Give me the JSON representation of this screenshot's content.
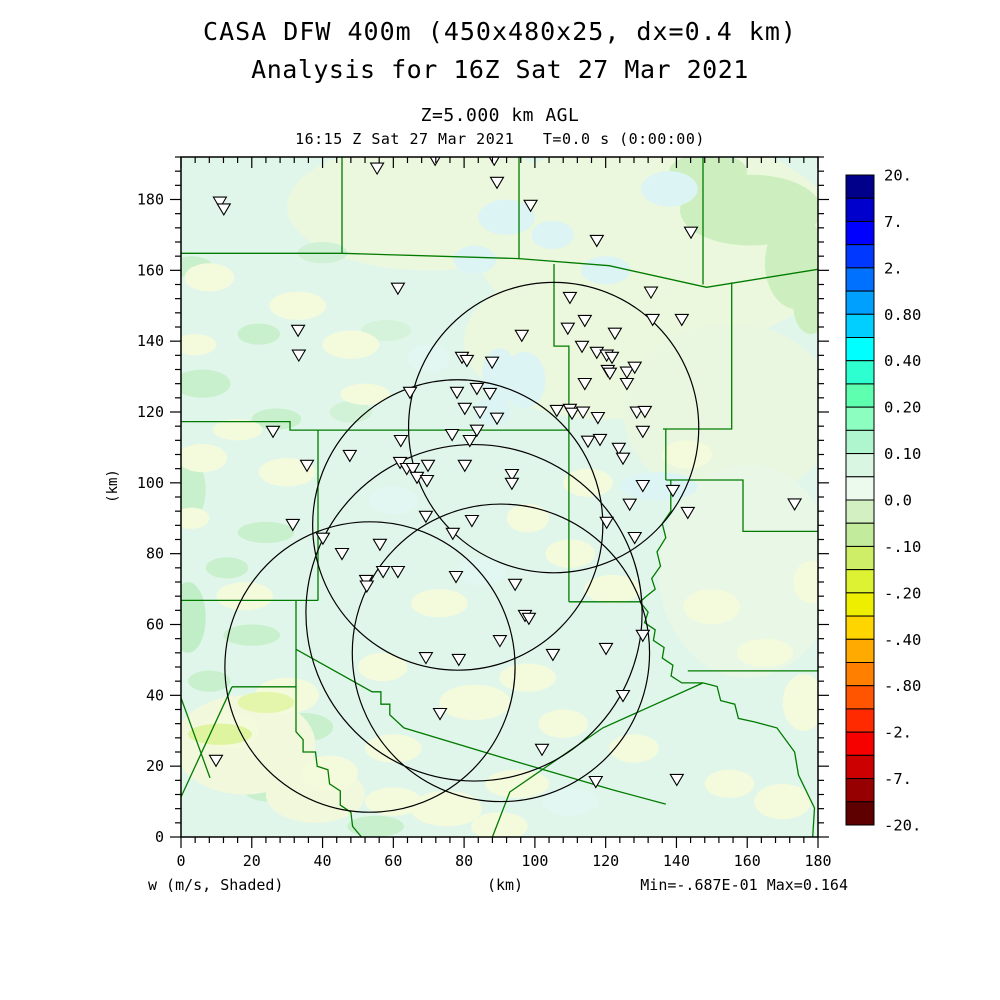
{
  "header": {
    "title_line1": "CASA DFW 400m (450x480x25, dx=0.4 km)",
    "title_line2": "Analysis for 16Z Sat 27 Mar 2021",
    "level_line": "Z=5.000 km AGL",
    "time_line": "16:15 Z Sat 27 Mar 2021   T=0.0 s (0:00:00)"
  },
  "footer": {
    "field_label": "w (m/s, Shaded)",
    "x_unit_label": "(km)",
    "minmax_label": "Min=-.687E-01 Max=0.164"
  },
  "y_axis_label": "(km)",
  "chart_data": {
    "type": "heatmap",
    "title": "CASA DFW 400m (450x480x25, dx=0.4 km) - Analysis for 16Z Sat 27 Mar 2021",
    "field": "w",
    "units": "m/s",
    "render_style": "Shaded",
    "level": "Z=5.000 km AGL",
    "valid_time": "16:15 Z Sat 27 Mar 2021",
    "forecast_time": "T=0.0 s (0:00:00)",
    "min_value": -0.0687,
    "max_value": 0.164,
    "xlabel": "(km)",
    "ylabel": "(km)",
    "axes": {
      "x": {
        "min": 0,
        "max": 180,
        "major": 20,
        "minor": 4,
        "tick_labels": [
          "0",
          "20",
          "40",
          "60",
          "80",
          "100",
          "120",
          "140",
          "160",
          "180"
        ]
      },
      "y": {
        "min": 0,
        "max": 192,
        "major": 20,
        "minor": 4,
        "tick_labels": [
          "0",
          "20",
          "40",
          "60",
          "80",
          "100",
          "120",
          "140",
          "160",
          "180"
        ]
      }
    },
    "colorbar": {
      "labels": [
        "20.",
        "7.",
        "2.",
        "0.80",
        "0.40",
        "0.20",
        "0.10",
        "0.0",
        "-.10",
        "-.20",
        "-.40",
        "-.80",
        "-2.",
        "-7.",
        "-20."
      ],
      "colors": [
        "#00008B",
        "#0000CD",
        "#0000FF",
        "#0038FF",
        "#0070FF",
        "#00A0FF",
        "#00CFFF",
        "#00FFFF",
        "#2EFFD0",
        "#5FFFB0",
        "#8CFFC0",
        "#AFF5CE",
        "#D9F6E3",
        "#ECFAEE",
        "#D2F0C2",
        "#C2EC9C",
        "#CDEE66",
        "#DDF233",
        "#EEEE00",
        "#FFD500",
        "#FFAA00",
        "#FF7F00",
        "#FF5500",
        "#FF2A00",
        "#F60000",
        "#CC0000",
        "#970000",
        "#5E0000"
      ]
    },
    "map": {
      "base_color": "#E1F6EA",
      "county_color": "#007B00",
      "ring_color": "#000000",
      "station_marker": "open-down-triangle"
    },
    "range_circles_km": [
      {
        "x": 105.3,
        "y": 115.6,
        "r": 41
      },
      {
        "x": 78.2,
        "y": 88.1,
        "r": 41
      },
      {
        "x": 53.4,
        "y": 48.0,
        "r": 41
      },
      {
        "x": 82.8,
        "y": 63.3,
        "r": 47.5
      },
      {
        "x": 90.4,
        "y": 52.0,
        "r": 42
      }
    ],
    "stations_km": [
      [
        55.4,
        189
      ],
      [
        71.8,
        191.5
      ],
      [
        88.5,
        191.5
      ],
      [
        89.3,
        185.0
      ],
      [
        98.8,
        178.5
      ],
      [
        11.0,
        179.4
      ],
      [
        12.1,
        177.5
      ],
      [
        117.5,
        168.6
      ],
      [
        144.1,
        170.9
      ],
      [
        61.3,
        155.1
      ],
      [
        109.9,
        152.5
      ],
      [
        132.8,
        154.0
      ],
      [
        33.1,
        143.2
      ],
      [
        33.3,
        136.2
      ],
      [
        114.1,
        146.0
      ],
      [
        109.3,
        143.8
      ],
      [
        96.3,
        141.8
      ],
      [
        133.3,
        146.3
      ],
      [
        141.5,
        146.3
      ],
      [
        122.6,
        142.4
      ],
      [
        113.3,
        138.7
      ],
      [
        117.5,
        137.0
      ],
      [
        120.3,
        136.2
      ],
      [
        121.8,
        135.6
      ],
      [
        79.4,
        135.6
      ],
      [
        80.8,
        134.7
      ],
      [
        87.9,
        134.2
      ],
      [
        120.6,
        131.9
      ],
      [
        121.2,
        131.1
      ],
      [
        126.0,
        131.4
      ],
      [
        128.2,
        132.8
      ],
      [
        126.0,
        128.2
      ],
      [
        114.1,
        128.2
      ],
      [
        64.7,
        125.7
      ],
      [
        78.0,
        125.7
      ],
      [
        83.6,
        126.8
      ],
      [
        87.3,
        125.4
      ],
      [
        80.2,
        121.2
      ],
      [
        84.5,
        120.1
      ],
      [
        89.3,
        118.4
      ],
      [
        106.2,
        120.6
      ],
      [
        109.9,
        120.9
      ],
      [
        110.5,
        119.8
      ],
      [
        113.6,
        120.1
      ],
      [
        117.8,
        118.6
      ],
      [
        128.8,
        120.1
      ],
      [
        131.1,
        120.3
      ],
      [
        83.6,
        115.0
      ],
      [
        26.0,
        114.7
      ],
      [
        76.6,
        113.8
      ],
      [
        81.6,
        112.1
      ],
      [
        62.1,
        112.1
      ],
      [
        130.5,
        114.7
      ],
      [
        115.0,
        111.9
      ],
      [
        118.4,
        112.4
      ],
      [
        123.7,
        109.9
      ],
      [
        124.9,
        107.1
      ],
      [
        47.7,
        107.9
      ],
      [
        35.6,
        105.1
      ],
      [
        61.9,
        105.9
      ],
      [
        63.8,
        104.2
      ],
      [
        65.5,
        104.2
      ],
      [
        69.8,
        105.1
      ],
      [
        66.7,
        101.7
      ],
      [
        69.5,
        100.8
      ],
      [
        80.2,
        105.1
      ],
      [
        93.5,
        102.5
      ],
      [
        93.5,
        100.0
      ],
      [
        130.5,
        99.4
      ],
      [
        139.0,
        98.0
      ],
      [
        31.6,
        88.4
      ],
      [
        40.1,
        84.5
      ],
      [
        45.5,
        80.2
      ],
      [
        56.2,
        82.8
      ],
      [
        69.2,
        90.7
      ],
      [
        82.2,
        89.5
      ],
      [
        76.8,
        85.9
      ],
      [
        120.3,
        89.0
      ],
      [
        126.8,
        94.1
      ],
      [
        143.2,
        91.8
      ],
      [
        173.4,
        94.2
      ],
      [
        128.2,
        84.7
      ],
      [
        57.1,
        75.1
      ],
      [
        61.3,
        75.1
      ],
      [
        52.3,
        72.6
      ],
      [
        52.5,
        71.0
      ],
      [
        77.7,
        73.7
      ],
      [
        94.4,
        71.5
      ],
      [
        97.2,
        62.7
      ],
      [
        98.3,
        61.9
      ],
      [
        90.1,
        55.6
      ],
      [
        105.1,
        51.7
      ],
      [
        120.1,
        53.4
      ],
      [
        130.5,
        57.1
      ],
      [
        69.2,
        50.8
      ],
      [
        78.5,
        50.3
      ],
      [
        124.9,
        40.1
      ],
      [
        73.2,
        35.0
      ],
      [
        102.0,
        24.9
      ],
      [
        117.2,
        15.8
      ],
      [
        140.1,
        16.4
      ],
      [
        9.9,
        21.8
      ]
    ],
    "county_lines_km": [
      [
        [
          0,
          164.8
        ],
        [
          45.5,
          164.8
        ],
        [
          45.5,
          192
        ]
      ],
      [
        [
          45.5,
          164.8
        ],
        [
          95.5,
          163.3
        ],
        [
          95.5,
          192
        ]
      ],
      [
        [
          95.5,
          163.3
        ],
        [
          121,
          161.3
        ],
        [
          148.5,
          155.2
        ],
        [
          180,
          160.3
        ]
      ],
      [
        [
          147.5,
          192
        ],
        [
          147.5,
          156
        ]
      ],
      [
        [
          0,
          117.3
        ],
        [
          30.8,
          117.3
        ],
        [
          30.8,
          114.9
        ],
        [
          109.6,
          114.9
        ]
      ],
      [
        [
          38.7,
          114.9
        ],
        [
          38.7,
          66.8
        ]
      ],
      [
        [
          105.4,
          161.8
        ],
        [
          105.4,
          138.6
        ],
        [
          109.6,
          138.6
        ],
        [
          109.6,
          66.4
        ]
      ],
      [
        [
          0,
          66.8
        ],
        [
          38.7,
          66.8
        ]
      ],
      [
        [
          32.5,
          66.8
        ],
        [
          32.5,
          29.7
        ],
        [
          34.5,
          27.5
        ],
        [
          34.5,
          24
        ],
        [
          38,
          24
        ],
        [
          38.5,
          20
        ],
        [
          41.5,
          19
        ],
        [
          42,
          15
        ],
        [
          45,
          13
        ],
        [
          45,
          9
        ],
        [
          48,
          7
        ],
        [
          48.5,
          3
        ],
        [
          51,
          0
        ]
      ],
      [
        [
          14.4,
          42.4
        ],
        [
          32.5,
          42.4
        ]
      ],
      [
        [
          14.4,
          42.4
        ],
        [
          0,
          11.3
        ]
      ],
      [
        [
          0,
          39.3
        ],
        [
          8.2,
          16.7
        ]
      ],
      [
        [
          32.5,
          53
        ],
        [
          54,
          41
        ],
        [
          56.5,
          41
        ],
        [
          56.5,
          37.5
        ],
        [
          59,
          37.5
        ],
        [
          59,
          34.5
        ],
        [
          63,
          30.8
        ],
        [
          92.9,
          21.8
        ],
        [
          122,
          13.3
        ],
        [
          137,
          9.3
        ]
      ],
      [
        [
          88,
          0
        ],
        [
          92.9,
          12.7
        ],
        [
          119.2,
          30.8
        ],
        [
          147.5,
          43.5
        ]
      ],
      [
        [
          143.2,
          46.9
        ],
        [
          180,
          46.9
        ]
      ],
      [
        [
          155.6,
          156.6
        ],
        [
          155.6,
          115.2
        ],
        [
          136.2,
          115.2
        ]
      ],
      [
        [
          137,
          115.2
        ],
        [
          137,
          100.8
        ]
      ],
      [
        [
          137,
          100.8
        ],
        [
          158.8,
          100.8
        ],
        [
          158.8,
          86.3
        ],
        [
          180,
          86.3
        ]
      ],
      [
        [
          138.4,
          100.8
        ],
        [
          138.4,
          92
        ],
        [
          136,
          88.5
        ],
        [
          137,
          84.5
        ],
        [
          134.5,
          80.5
        ],
        [
          135.5,
          76.5
        ],
        [
          133,
          73
        ],
        [
          134,
          70
        ],
        [
          131.5,
          68
        ],
        [
          129.7,
          66.4
        ],
        [
          109.6,
          66.4
        ]
      ],
      [
        [
          129.7,
          66.4
        ],
        [
          132,
          63.5
        ],
        [
          131,
          60.5
        ],
        [
          134,
          58.5
        ],
        [
          133.5,
          55.5
        ],
        [
          136.5,
          53.5
        ],
        [
          136,
          50.5
        ],
        [
          139,
          48.5
        ],
        [
          138.5,
          45.5
        ],
        [
          141.5,
          43.5
        ],
        [
          147.5,
          43.5
        ]
      ],
      [
        [
          147.5,
          43.5
        ],
        [
          151.5,
          42.5
        ],
        [
          152.5,
          38.5
        ],
        [
          156.5,
          37.5
        ],
        [
          157.5,
          33.5
        ],
        [
          162,
          32.5
        ],
        [
          168.4,
          30.8
        ],
        [
          173.4,
          24
        ],
        [
          174.5,
          17.5
        ],
        [
          179,
          8.2
        ],
        [
          178.5,
          0
        ]
      ]
    ],
    "shading_blobs_km": [
      [
        135,
        168,
        52,
        30,
        "#ECF8DD"
      ],
      [
        70,
        178,
        40,
        18,
        "#ECF8DD"
      ],
      [
        120,
        140,
        40,
        22,
        "#ECF8DD"
      ],
      [
        155,
        120,
        30,
        25,
        "#EAF7E0"
      ],
      [
        160,
        75,
        25,
        30,
        "#E8F7E6"
      ],
      [
        161,
        177,
        20,
        10,
        "#CDEFBF"
      ],
      [
        174,
        162,
        9,
        13,
        "#CDEFBF"
      ],
      [
        149,
        188,
        11,
        5,
        "#CDEFBF"
      ],
      [
        178,
        150,
        5,
        8,
        "#CDEFBF"
      ],
      [
        3,
        161,
        6,
        3,
        "#C8F0CC"
      ],
      [
        22,
        142,
        6,
        3,
        "#C8F0CC"
      ],
      [
        6,
        128,
        8,
        4,
        "#C8F0CC"
      ],
      [
        27,
        118,
        7,
        3,
        "#C8F0CC"
      ],
      [
        2,
        98,
        5,
        9,
        "#C8F0CC"
      ],
      [
        24,
        86,
        8,
        3,
        "#C8F0CC"
      ],
      [
        13,
        76,
        6,
        3,
        "#C8F0CC"
      ],
      [
        2,
        62,
        5,
        10,
        "#C0EEC6"
      ],
      [
        20,
        57,
        8,
        3,
        "#C8F0CC"
      ],
      [
        8,
        44,
        6,
        3,
        "#C8F0CC"
      ],
      [
        35,
        31,
        8,
        4,
        "#C8F0CC"
      ],
      [
        25,
        13,
        7,
        3,
        "#C8F0CC"
      ],
      [
        55,
        3,
        8,
        3,
        "#C8F0CC"
      ],
      [
        48,
        120,
        6,
        3,
        "#D2F2D8"
      ],
      [
        58,
        143,
        7,
        3,
        "#D4F3DA"
      ],
      [
        40,
        165,
        7,
        3,
        "#D0F1D6"
      ],
      [
        18,
        26,
        20,
        14,
        "#F2F8DC"
      ],
      [
        38,
        12,
        14,
        8,
        "#F2F8DC"
      ],
      [
        8,
        158,
        7,
        4,
        "#F4FADC"
      ],
      [
        33,
        150,
        8,
        4,
        "#F4FADC"
      ],
      [
        4,
        139,
        6,
        3,
        "#F4FADC"
      ],
      [
        16,
        115,
        7,
        3,
        "#F4FADC"
      ],
      [
        6,
        107,
        7,
        4,
        "#F4FADC"
      ],
      [
        30,
        103,
        8,
        4,
        "#F4FADC"
      ],
      [
        3,
        90,
        5,
        3,
        "#F4FADC"
      ],
      [
        18,
        68,
        8,
        4,
        "#F4FADC"
      ],
      [
        30,
        40,
        9,
        5,
        "#F4FADC"
      ],
      [
        14,
        30,
        8,
        5,
        "#F4FADC"
      ],
      [
        42,
        18,
        8,
        5,
        "#F4FADC"
      ],
      [
        60,
        25,
        8,
        4,
        "#F4FADC"
      ],
      [
        75,
        8,
        10,
        5,
        "#F4FADC"
      ],
      [
        90,
        3,
        8,
        4,
        "#F4FADC"
      ],
      [
        57,
        48,
        7,
        4,
        "#F4FADC"
      ],
      [
        73,
        66,
        8,
        4,
        "#F4FADC"
      ],
      [
        52,
        125,
        7,
        3,
        "#F4FADC"
      ],
      [
        48,
        139,
        8,
        4,
        "#F4FADC"
      ],
      [
        83,
        38,
        10,
        5,
        "#F4FADC"
      ],
      [
        95,
        15,
        9,
        4,
        "#F4FADC"
      ],
      [
        60,
        10,
        8,
        4,
        "#F4FADC"
      ],
      [
        176,
        38,
        6,
        8,
        "#F4FADC"
      ],
      [
        170,
        10,
        8,
        5,
        "#F4FADC"
      ],
      [
        178,
        72,
        5,
        6,
        "#F4FADC"
      ],
      [
        110,
        80,
        7,
        4,
        "#F4FADC"
      ],
      [
        122,
        70,
        8,
        4,
        "#F4FADC"
      ],
      [
        150,
        65,
        8,
        5,
        "#F4FADC"
      ],
      [
        165,
        52,
        8,
        4,
        "#F4FADC"
      ],
      [
        98,
        45,
        8,
        4,
        "#F4FADC"
      ],
      [
        115,
        100,
        7,
        4,
        "#F4FADC"
      ],
      [
        143,
        108,
        7,
        4,
        "#F4FADC"
      ],
      [
        98,
        90,
        6,
        4,
        "#F4FADC"
      ],
      [
        108,
        32,
        7,
        4,
        "#F4FADC"
      ],
      [
        128,
        25,
        7,
        4,
        "#F4FADC"
      ],
      [
        155,
        15,
        7,
        4,
        "#F4FADC"
      ],
      [
        11,
        29,
        9,
        3,
        "#DFF49E"
      ],
      [
        24,
        38,
        8,
        3,
        "#E4F6AC"
      ],
      [
        92,
        175,
        8,
        5,
        "#DCF4F4"
      ],
      [
        83,
        163,
        6,
        4,
        "#DCF4F4"
      ],
      [
        97,
        129,
        6,
        8,
        "#DCF4F4"
      ],
      [
        88,
        120,
        5,
        4,
        "#DCF4F4"
      ],
      [
        138,
        183,
        8,
        5,
        "#DCF4F4"
      ],
      [
        135,
        99,
        11,
        4,
        "#DCF4F4"
      ],
      [
        120,
        160,
        7,
        4,
        "#DCF4F4"
      ],
      [
        105,
        170,
        6,
        4,
        "#DCF4F4"
      ],
      [
        70,
        135,
        6,
        4,
        "#E2F6F2"
      ],
      [
        60,
        95,
        7,
        4,
        "#E2F6F2"
      ],
      [
        85,
        75,
        7,
        4,
        "#E2F6F2"
      ],
      [
        110,
        10,
        8,
        4,
        "#E2F6F2"
      ],
      [
        90,
        130,
        5,
        8,
        "#DCF4F4"
      ]
    ],
    "legend_position": "right",
    "grid": false
  }
}
